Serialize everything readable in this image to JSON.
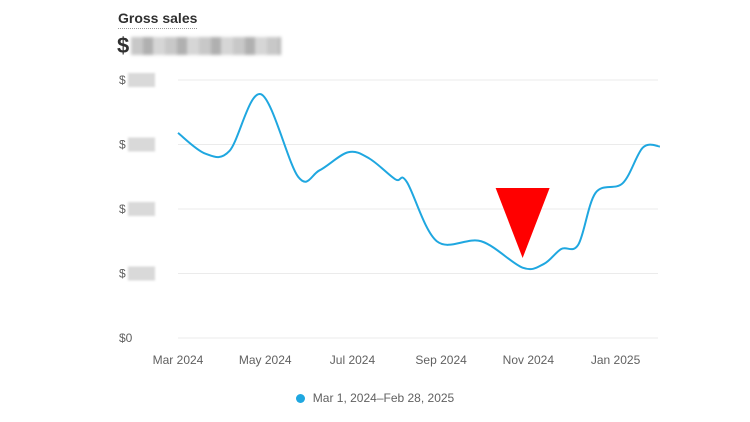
{
  "header": {
    "title": "Gross sales",
    "total_prefix": "$"
  },
  "chart_data": {
    "type": "line",
    "title": "Gross sales",
    "y_ticks": [
      "$0",
      "$",
      "$",
      "$",
      "$"
    ],
    "y_ticks_redacted": true,
    "ylim": [
      0,
      4
    ],
    "x_ticks": [
      "Mar 2024",
      "May 2024",
      "Jul 2024",
      "Sep 2024",
      "Nov 2024",
      "Jan 2025"
    ],
    "x_tick_dates": [
      "2024-03-01",
      "2024-05-01",
      "2024-07-01",
      "2024-09-01",
      "2024-11-01",
      "2025-01-01"
    ],
    "grid": true,
    "legend_position": "bottom",
    "series": [
      {
        "name": "Mar 1, 2024–Feb 28, 2025",
        "color": "#1fa7e0",
        "x": [
          "2024-03-01",
          "2024-03-20",
          "2024-04-06",
          "2024-04-28",
          "2024-05-24",
          "2024-06-08",
          "2024-06-28",
          "2024-07-13",
          "2024-07-31",
          "2024-08-08",
          "2024-08-29",
          "2024-09-29",
          "2024-10-28",
          "2024-11-12",
          "2024-11-24",
          "2024-12-06",
          "2024-12-18",
          "2025-01-06",
          "2025-01-20",
          "2025-02-01"
        ],
        "y": [
          3.18,
          2.86,
          2.9,
          3.78,
          2.5,
          2.6,
          2.88,
          2.78,
          2.46,
          2.42,
          1.5,
          1.5,
          1.09,
          1.15,
          1.38,
          1.45,
          2.25,
          2.4,
          2.95,
          2.97
        ]
      }
    ],
    "annotation": {
      "shape": "downward-triangle",
      "color": "#ff0000",
      "date": "2024-10-28"
    }
  }
}
